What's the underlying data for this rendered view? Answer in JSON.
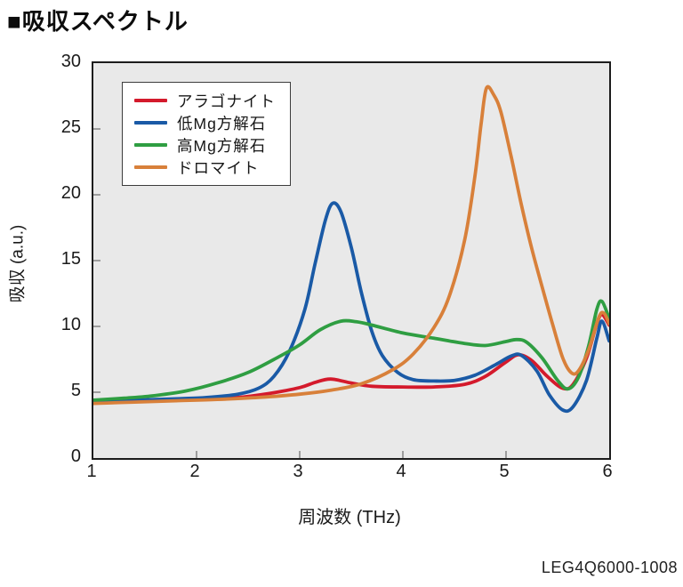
{
  "page": {
    "title": "■吸収スペクトル",
    "footer_code": "LEG4Q6000-1008"
  },
  "chart_data": {
    "type": "line",
    "title": "吸収スペクトル",
    "xlabel": "周波数 (THz)",
    "ylabel": "吸収 (a.u.)",
    "xlim": [
      1,
      6
    ],
    "ylim": [
      0,
      30
    ],
    "xticks": [
      1,
      2,
      3,
      4,
      5,
      6
    ],
    "yticks": [
      0,
      5,
      10,
      15,
      20,
      25,
      30
    ],
    "grid": false,
    "legend_position": "upper-left",
    "plot_background": "#e9e9e9",
    "frame_color": "#1c1c1c",
    "tick_color": "#8a8a8a",
    "series": [
      {
        "name": "アラゴナイト",
        "color": "#d41a2c",
        "points": [
          [
            1,
            4.2
          ],
          [
            1.3,
            4.3
          ],
          [
            1.6,
            4.35
          ],
          [
            2,
            4.45
          ],
          [
            2.4,
            4.6
          ],
          [
            2.7,
            4.9
          ],
          [
            3,
            5.35
          ],
          [
            3.15,
            5.75
          ],
          [
            3.3,
            6.0
          ],
          [
            3.5,
            5.7
          ],
          [
            3.7,
            5.45
          ],
          [
            4,
            5.4
          ],
          [
            4.3,
            5.4
          ],
          [
            4.6,
            5.6
          ],
          [
            4.8,
            6.2
          ],
          [
            5,
            7.3
          ],
          [
            5.12,
            7.85
          ],
          [
            5.25,
            7.4
          ],
          [
            5.4,
            6.2
          ],
          [
            5.55,
            5.3
          ],
          [
            5.65,
            5.6
          ],
          [
            5.78,
            7.6
          ],
          [
            5.88,
            10.2
          ],
          [
            5.93,
            10.9
          ],
          [
            6,
            10.1
          ]
        ]
      },
      {
        "name": "低Mg方解石",
        "color": "#1a5aa6",
        "points": [
          [
            1,
            4.3
          ],
          [
            1.4,
            4.4
          ],
          [
            1.8,
            4.5
          ],
          [
            2.1,
            4.6
          ],
          [
            2.4,
            4.85
          ],
          [
            2.6,
            5.3
          ],
          [
            2.75,
            6.2
          ],
          [
            2.9,
            8.1
          ],
          [
            3.05,
            11.3
          ],
          [
            3.15,
            14.8
          ],
          [
            3.25,
            18.1
          ],
          [
            3.32,
            19.35
          ],
          [
            3.4,
            18.7
          ],
          [
            3.5,
            16.0
          ],
          [
            3.6,
            12.5
          ],
          [
            3.7,
            9.6
          ],
          [
            3.8,
            7.8
          ],
          [
            3.95,
            6.5
          ],
          [
            4.1,
            5.95
          ],
          [
            4.3,
            5.85
          ],
          [
            4.5,
            5.9
          ],
          [
            4.7,
            6.3
          ],
          [
            4.9,
            7.1
          ],
          [
            5.05,
            7.75
          ],
          [
            5.15,
            7.8
          ],
          [
            5.3,
            6.6
          ],
          [
            5.42,
            4.8
          ],
          [
            5.55,
            3.65
          ],
          [
            5.65,
            3.9
          ],
          [
            5.78,
            5.9
          ],
          [
            5.88,
            9.1
          ],
          [
            5.93,
            10.4
          ],
          [
            6,
            8.9
          ]
        ]
      },
      {
        "name": "高Mg方解石",
        "color": "#2f9e42",
        "points": [
          [
            1,
            4.4
          ],
          [
            1.3,
            4.55
          ],
          [
            1.6,
            4.75
          ],
          [
            1.9,
            5.1
          ],
          [
            2.2,
            5.7
          ],
          [
            2.5,
            6.5
          ],
          [
            2.8,
            7.7
          ],
          [
            3,
            8.6
          ],
          [
            3.2,
            9.75
          ],
          [
            3.4,
            10.4
          ],
          [
            3.55,
            10.35
          ],
          [
            3.7,
            10.1
          ],
          [
            4,
            9.5
          ],
          [
            4.3,
            9.1
          ],
          [
            4.6,
            8.7
          ],
          [
            4.8,
            8.55
          ],
          [
            5,
            8.85
          ],
          [
            5.1,
            9.0
          ],
          [
            5.2,
            8.8
          ],
          [
            5.35,
            7.6
          ],
          [
            5.5,
            5.9
          ],
          [
            5.6,
            5.25
          ],
          [
            5.7,
            6.1
          ],
          [
            5.8,
            8.5
          ],
          [
            5.88,
            11.3
          ],
          [
            5.93,
            11.9
          ],
          [
            6,
            10.6
          ]
        ]
      },
      {
        "name": "ドロマイト",
        "color": "#d8803a",
        "points": [
          [
            1,
            4.15
          ],
          [
            1.4,
            4.25
          ],
          [
            1.8,
            4.35
          ],
          [
            2.2,
            4.45
          ],
          [
            2.6,
            4.6
          ],
          [
            3,
            4.85
          ],
          [
            3.3,
            5.15
          ],
          [
            3.6,
            5.65
          ],
          [
            3.9,
            6.7
          ],
          [
            4.1,
            7.9
          ],
          [
            4.3,
            9.9
          ],
          [
            4.45,
            12.3
          ],
          [
            4.6,
            16.6
          ],
          [
            4.7,
            21.5
          ],
          [
            4.76,
            25.5
          ],
          [
            4.81,
            28.1
          ],
          [
            4.88,
            27.6
          ],
          [
            4.95,
            26.3
          ],
          [
            5.05,
            22.9
          ],
          [
            5.15,
            19.2
          ],
          [
            5.25,
            15.9
          ],
          [
            5.35,
            13.0
          ],
          [
            5.45,
            10.2
          ],
          [
            5.55,
            7.6
          ],
          [
            5.63,
            6.5
          ],
          [
            5.7,
            6.6
          ],
          [
            5.8,
            8.2
          ],
          [
            5.9,
            10.7
          ],
          [
            5.95,
            11.0
          ],
          [
            6,
            10.2
          ]
        ]
      }
    ]
  }
}
